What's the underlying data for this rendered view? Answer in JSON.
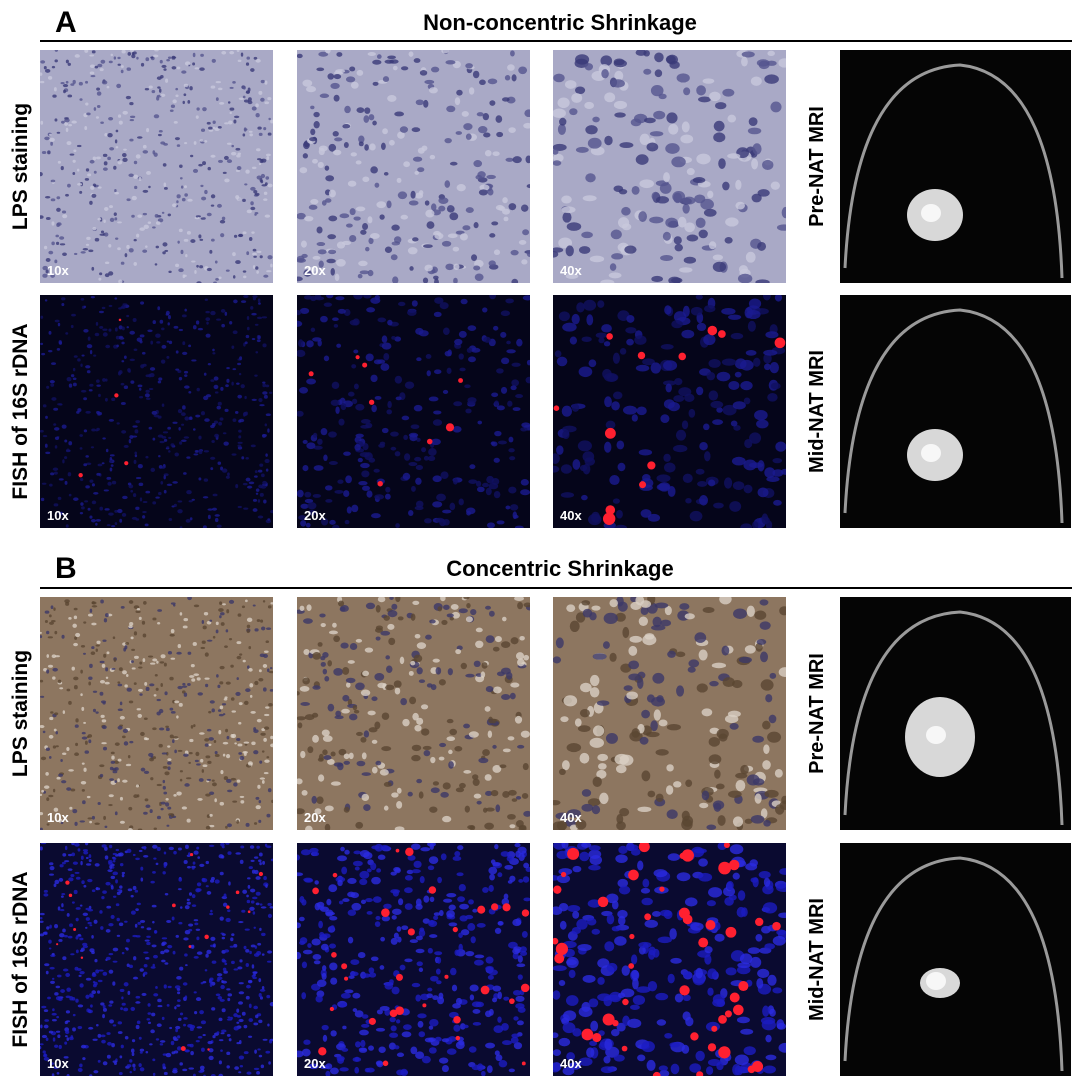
{
  "panels": [
    {
      "letter": "A",
      "title": "Non-concentric Shrinkage",
      "rows": [
        {
          "label": "LPS staining",
          "images": [
            "10x",
            "20x",
            "40x"
          ],
          "mri_label": "Pre-NAT MRI"
        },
        {
          "label": "FISH of 16S rDNA",
          "images": [
            "10x",
            "20x",
            "40x"
          ],
          "mri_label": "Mid-NAT MRI"
        }
      ]
    },
    {
      "letter": "B",
      "title": "Concentric Shrinkage",
      "rows": [
        {
          "label": "LPS staining",
          "images": [
            "10x",
            "20x",
            "40x"
          ],
          "mri_label": "Pre-NAT MRI"
        },
        {
          "label": "FISH of 16S rDNA",
          "images": [
            "10x",
            "20x",
            "40x"
          ],
          "mri_label": "Mid-NAT MRI"
        }
      ]
    }
  ]
}
